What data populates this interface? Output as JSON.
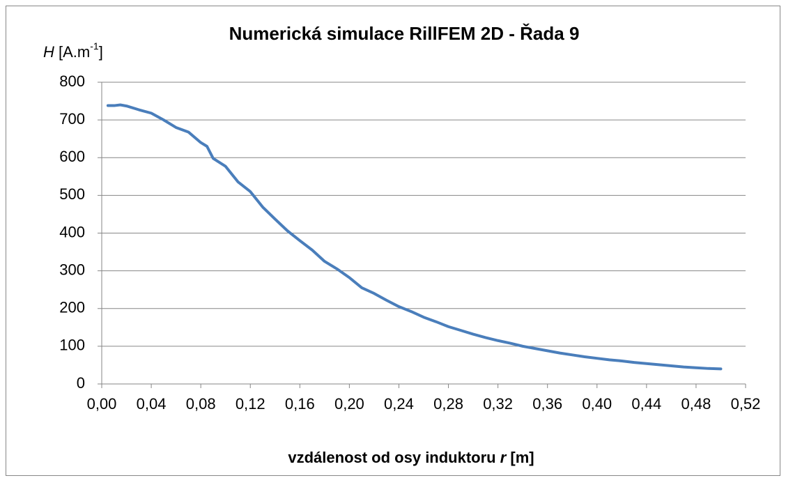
{
  "chart_data": {
    "type": "line",
    "title": "Numerická simulace RillFEM 2D - Řada 9",
    "y_label": [
      "H",
      " [A.m",
      "-1",
      "]"
    ],
    "x_label": [
      "vzdálenost od osy induktoru ",
      "r",
      " [m]"
    ],
    "x": [
      0.005,
      0.01,
      0.015,
      0.02,
      0.03,
      0.04,
      0.05,
      0.06,
      0.07,
      0.08,
      0.085,
      0.09,
      0.1,
      0.11,
      0.12,
      0.13,
      0.14,
      0.15,
      0.16,
      0.17,
      0.18,
      0.19,
      0.2,
      0.21,
      0.22,
      0.23,
      0.24,
      0.25,
      0.26,
      0.27,
      0.28,
      0.29,
      0.3,
      0.31,
      0.32,
      0.33,
      0.34,
      0.35,
      0.36,
      0.37,
      0.38,
      0.39,
      0.4,
      0.41,
      0.42,
      0.43,
      0.44,
      0.45,
      0.46,
      0.47,
      0.48,
      0.49,
      0.5
    ],
    "series": [
      {
        "name": "Řada 9",
        "color": "#4a7ebb",
        "values": [
          738,
          738,
          740,
          737,
          727,
          718,
          700,
          680,
          668,
          640,
          630,
          598,
          577,
          536,
          510,
          469,
          437,
          406,
          380,
          355,
          325,
          305,
          282,
          255,
          240,
          222,
          205,
          192,
          177,
          165,
          152,
          142,
          132,
          123,
          115,
          108,
          100,
          94,
          88,
          82,
          77,
          72,
          68,
          64,
          61,
          57,
          54,
          51,
          48,
          45,
          43,
          41,
          40
        ]
      }
    ],
    "xlim": [
      0,
      0.52
    ],
    "xticks": [
      {
        "value": 0,
        "label": "0,00"
      },
      {
        "value": 0.04,
        "label": "0,04"
      },
      {
        "value": 0.08,
        "label": "0,08"
      },
      {
        "value": 0.12,
        "label": "0,12"
      },
      {
        "value": 0.16,
        "label": "0,16"
      },
      {
        "value": 0.2,
        "label": "0,20"
      },
      {
        "value": 0.24,
        "label": "0,24"
      },
      {
        "value": 0.28,
        "label": "0,28"
      },
      {
        "value": 0.32,
        "label": "0,32"
      },
      {
        "value": 0.36,
        "label": "0,36"
      },
      {
        "value": 0.4,
        "label": "0,40"
      },
      {
        "value": 0.44,
        "label": "0,44"
      },
      {
        "value": 0.48,
        "label": "0,48"
      },
      {
        "value": 0.52,
        "label": "0,52"
      }
    ],
    "ylim": [
      0,
      800
    ],
    "yticks": [
      0,
      100,
      200,
      300,
      400,
      500,
      600,
      700,
      800
    ],
    "grid": true
  }
}
